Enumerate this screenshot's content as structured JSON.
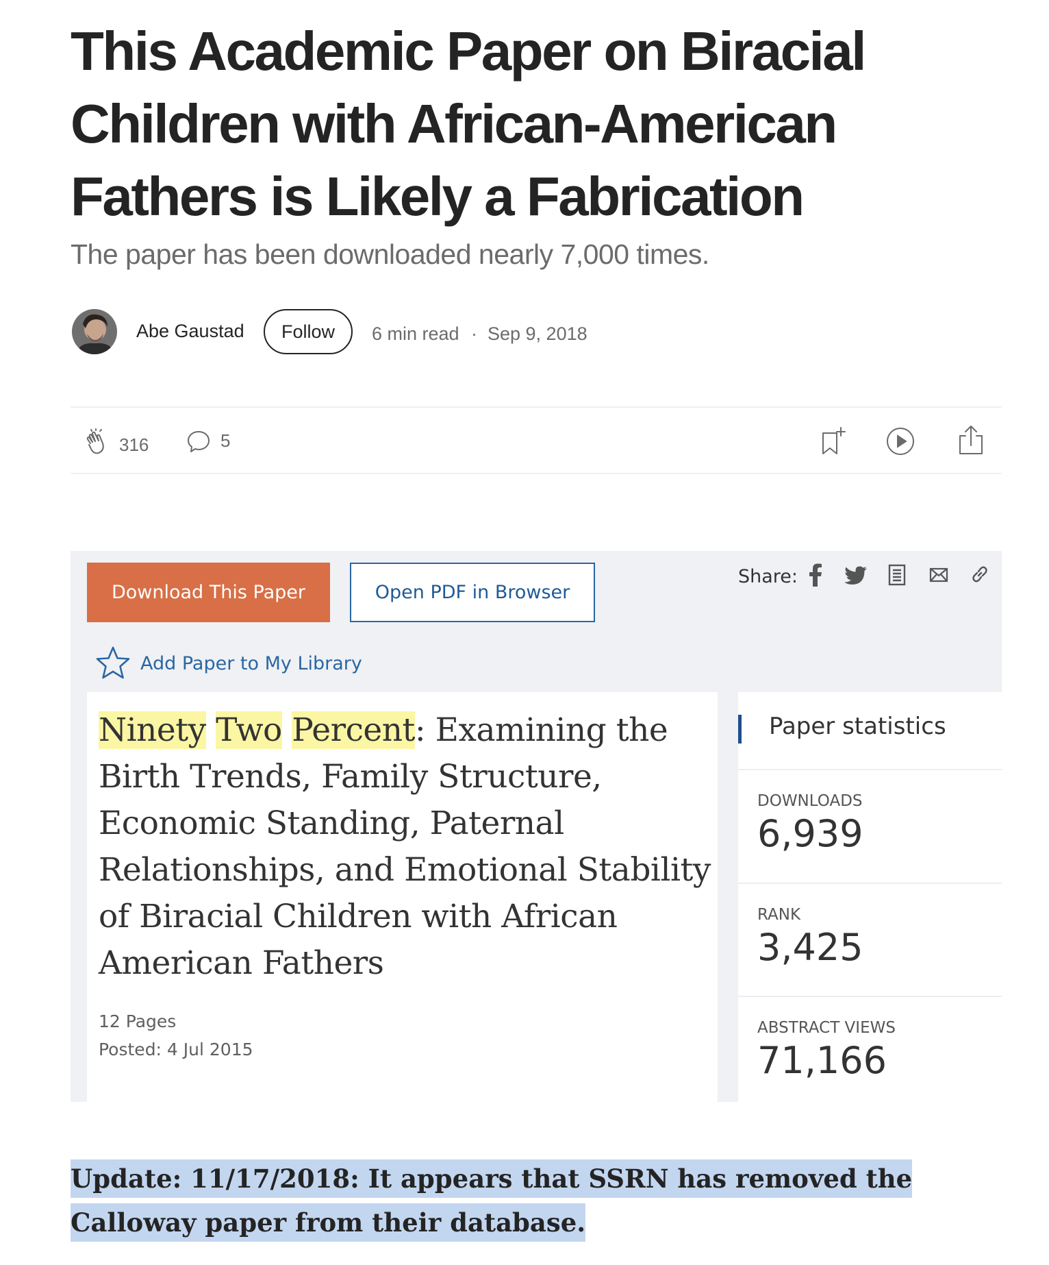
{
  "article": {
    "title": "This Academic Paper on Biracial Children with African-American Fathers is Likely a Fabrication",
    "subtitle": "The paper has been downloaded nearly 7,000 times.",
    "author": "Abe Gaustad",
    "follow_label": "Follow",
    "read_time": "6 min read",
    "separator": "·",
    "date": "Sep 9, 2018"
  },
  "actions": {
    "claps": "316",
    "comments": "5",
    "icons": [
      "clap-icon",
      "comment-icon",
      "bookmark-add-icon",
      "play-icon",
      "share-icon"
    ]
  },
  "ssrn": {
    "download_label": "Download This Paper",
    "open_pdf_label": "Open PDF in Browser",
    "share_label": "Share:",
    "share_icons": [
      "facebook-icon",
      "twitter-icon",
      "document-icon",
      "email-icon",
      "link-icon"
    ],
    "library_label": "Add Paper to My Library",
    "paper_title_highlighted": [
      "Ninety",
      "Two",
      "Percent"
    ],
    "paper_title_rest": ": Examining the Birth Trends, Family Structure, Economic Standing, Paternal Relationships, and Emotional Stability of Biracial Children with African American Fathers",
    "pages": "12 Pages",
    "posted": "Posted: 4 Jul 2015",
    "stats_title": "Paper statistics",
    "stats": [
      {
        "label": "DOWNLOADS",
        "value": "6,939"
      },
      {
        "label": "RANK",
        "value": "3,425"
      },
      {
        "label": "ABSTRACT VIEWS",
        "value": "71,166"
      }
    ]
  },
  "update_text": "Update: 11/17/2018: It appears that SSRN has removed the Calloway paper from their database.",
  "colors": {
    "download_button": "#d86f46",
    "link_blue": "#2a66a3",
    "highlight_yellow": "#fbf6a4",
    "selection_blue": "#c3d6f0"
  }
}
